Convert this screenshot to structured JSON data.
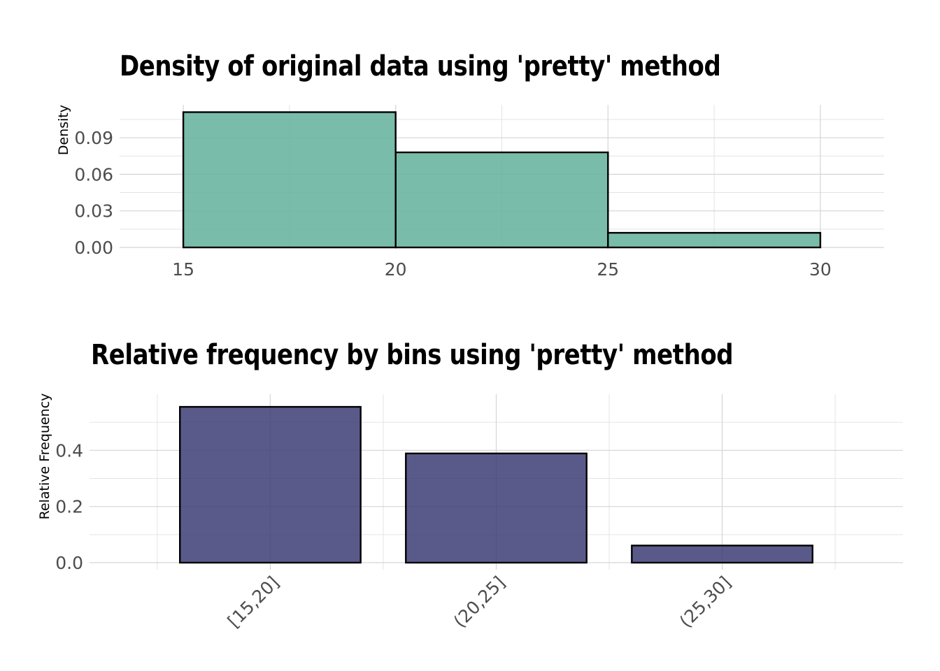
{
  "chart_data": [
    {
      "type": "bar",
      "title": "Density of original data using 'pretty' method",
      "xlabel": "",
      "ylabel": "Density",
      "bins": [
        {
          "x_start": 15,
          "x_end": 20,
          "value": 0.111
        },
        {
          "x_start": 20,
          "x_end": 25,
          "value": 0.078
        },
        {
          "x_start": 25,
          "x_end": 30,
          "value": 0.012
        }
      ],
      "xlim": [
        13.5,
        31.5
      ],
      "ylim": [
        0,
        0.117
      ],
      "x_ticks": [
        15,
        20,
        25,
        30
      ],
      "x_tick_labels": [
        "15",
        "20",
        "25",
        "30"
      ],
      "y_ticks": [
        0,
        0.03,
        0.06,
        0.09
      ],
      "y_tick_labels": [
        "0.00",
        "0.03",
        "0.06",
        "0.09"
      ],
      "bar_color": "#66b39e",
      "bar_outline": "#000000",
      "grid": true
    },
    {
      "type": "bar",
      "title": "Relative frequency by bins using 'pretty' method",
      "xlabel": "",
      "ylabel": "Relative Frequency",
      "categories": [
        "[15,20]",
        "(20,25]",
        "(25,30]"
      ],
      "values": [
        0.555,
        0.389,
        0.061
      ],
      "ylim": [
        0,
        0.6
      ],
      "y_ticks": [
        0,
        0.2,
        0.4
      ],
      "y_tick_labels": [
        "0.0",
        "0.2",
        "0.4"
      ],
      "bar_color": "#3f3f77",
      "bar_outline": "#000000",
      "grid": true
    }
  ]
}
